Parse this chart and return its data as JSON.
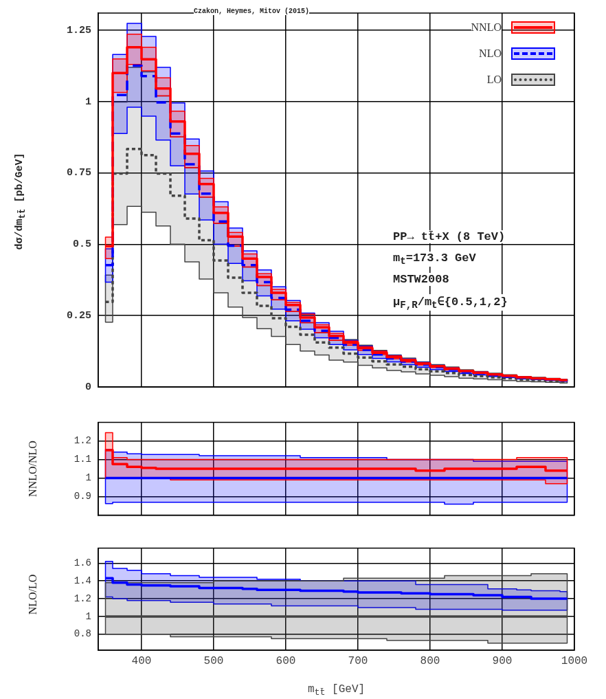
{
  "chart_data": [
    {
      "type": "step",
      "title": "Czakon, Heymes, Mitov (2015)",
      "ylabel": "dσ/dm$_{tt̄}$  [pb/GeV]",
      "x": [
        350,
        370,
        390,
        410,
        430,
        450,
        470,
        490,
        510,
        530,
        550,
        570,
        590,
        610,
        630,
        650,
        670,
        690,
        710,
        730,
        750,
        770,
        790,
        810,
        830,
        850,
        870,
        890,
        910,
        930,
        950,
        970,
        990
      ],
      "series": [
        {
          "name": "NNLO",
          "color": "#ff0000",
          "line_style": "solid",
          "values": [
            0.493,
            1.1,
            1.19,
            1.148,
            1.046,
            0.93,
            0.817,
            0.711,
            0.61,
            0.527,
            0.45,
            0.385,
            0.33,
            0.287,
            0.243,
            0.209,
            0.179,
            0.155,
            0.136,
            0.12,
            0.105,
            0.093,
            0.082,
            0.072,
            0.064,
            0.056,
            0.05,
            0.044,
            0.039,
            0.034,
            0.03,
            0.027,
            0.024
          ],
          "lower": [
            0.45,
            1.032,
            1.13,
            1.108,
            1.02,
            0.876,
            0.768,
            0.665,
            0.573,
            0.493,
            0.42,
            0.355,
            0.305,
            0.264,
            0.225,
            0.19,
            0.163,
            0.146,
            0.128,
            0.113,
            0.099,
            0.087,
            0.077,
            0.068,
            0.06,
            0.053,
            0.047,
            0.041,
            0.037,
            0.032,
            0.028,
            0.025,
            0.022
          ],
          "upper": [
            0.525,
            1.149,
            1.236,
            1.19,
            1.083,
            0.966,
            0.846,
            0.731,
            0.631,
            0.541,
            0.466,
            0.397,
            0.342,
            0.296,
            0.255,
            0.218,
            0.188,
            0.161,
            0.141,
            0.125,
            0.109,
            0.097,
            0.085,
            0.075,
            0.067,
            0.058,
            0.052,
            0.046,
            0.041,
            0.035,
            0.031,
            0.028,
            0.025
          ]
        },
        {
          "name": "NLO",
          "color": "#0000ff",
          "line_style": "dashed",
          "values": [
            0.427,
            1.023,
            1.126,
            1.089,
            0.997,
            0.888,
            0.78,
            0.677,
            0.58,
            0.495,
            0.427,
            0.367,
            0.312,
            0.271,
            0.232,
            0.197,
            0.172,
            0.148,
            0.13,
            0.114,
            0.1,
            0.089,
            0.078,
            0.069,
            0.061,
            0.053,
            0.048,
            0.042,
            0.037,
            0.032,
            0.029,
            0.026,
            0.023
          ],
          "lower": [
            0.367,
            0.888,
            0.98,
            0.949,
            0.865,
            0.775,
            0.676,
            0.585,
            0.5,
            0.433,
            0.372,
            0.319,
            0.273,
            0.232,
            0.202,
            0.172,
            0.149,
            0.13,
            0.114,
            0.1,
            0.088,
            0.078,
            0.069,
            0.061,
            0.054,
            0.047,
            0.042,
            0.037,
            0.033,
            0.028,
            0.026,
            0.023,
            0.02
          ],
          "upper": [
            0.484,
            1.165,
            1.274,
            1.228,
            1.12,
            0.995,
            0.869,
            0.757,
            0.649,
            0.557,
            0.477,
            0.41,
            0.351,
            0.303,
            0.259,
            0.225,
            0.195,
            0.163,
            0.143,
            0.125,
            0.11,
            0.098,
            0.086,
            0.076,
            0.067,
            0.058,
            0.053,
            0.046,
            0.041,
            0.035,
            0.032,
            0.029,
            0.025
          ]
        },
        {
          "name": "LO",
          "color": "#444444",
          "line_style": "dotted",
          "values": [
            0.298,
            0.748,
            0.834,
            0.812,
            0.748,
            0.67,
            0.59,
            0.514,
            0.443,
            0.383,
            0.33,
            0.284,
            0.241,
            0.211,
            0.183,
            0.156,
            0.138,
            0.117,
            0.103,
            0.09,
            0.079,
            0.071,
            0.062,
            0.055,
            0.049,
            0.042,
            0.038,
            0.034,
            0.03,
            0.026,
            0.024,
            0.021,
            0.019
          ],
          "lower": [
            0.227,
            0.569,
            0.633,
            0.612,
            0.564,
            0.5,
            0.438,
            0.378,
            0.33,
            0.28,
            0.243,
            0.204,
            0.177,
            0.149,
            0.126,
            0.112,
            0.094,
            0.087,
            0.076,
            0.067,
            0.058,
            0.053,
            0.046,
            0.041,
            0.036,
            0.031,
            0.028,
            0.025,
            0.022,
            0.019,
            0.018,
            0.016,
            0.014
          ],
          "upper": [
            0.392,
            0.998,
            1.12,
            1.104,
            1.02,
            0.876,
            0.768,
            0.665,
            0.573,
            0.493,
            0.42,
            0.355,
            0.305,
            0.264,
            0.225,
            0.19,
            0.163,
            0.166,
            0.146,
            0.128,
            0.112,
            0.101,
            0.088,
            0.078,
            0.07,
            0.06,
            0.054,
            0.048,
            0.043,
            0.037,
            0.034,
            0.03,
            0.027
          ]
        }
      ],
      "xlim": [
        340,
        1000
      ],
      "xticks": [
        400,
        500,
        600,
        700,
        800,
        900,
        1000
      ],
      "ylim": [
        0,
        1.31
      ],
      "yticks": [
        0,
        0.25,
        0.5,
        0.75,
        1,
        1.25
      ],
      "grid": true,
      "legend": "top right",
      "tick_labels": "y",
      "annotations": [
        "PP→ tt̄+X (8 TeV)",
        "m$_{t}$=173.3 GeV",
        "MSTW2008",
        "μ$_{F,R}$/m$_{t}$∈{0.5,1,2}"
      ]
    },
    {
      "type": "step",
      "ylabel": "NNLO/NLO",
      "x": [
        350,
        370,
        390,
        410,
        430,
        450,
        470,
        490,
        510,
        530,
        550,
        570,
        590,
        610,
        630,
        650,
        670,
        690,
        710,
        730,
        750,
        770,
        790,
        810,
        830,
        850,
        870,
        890,
        910,
        930,
        950,
        970,
        990
      ],
      "series": [
        {
          "color": "#ff0000",
          "line_style": "solid",
          "values": [
            1.15,
            1.075,
            1.06,
            1.055,
            1.05,
            1.05,
            1.05,
            1.05,
            1.05,
            1.05,
            1.05,
            1.05,
            1.05,
            1.05,
            1.05,
            1.05,
            1.05,
            1.05,
            1.05,
            1.05,
            1.05,
            1.05,
            1.04,
            1.04,
            1.05,
            1.05,
            1.05,
            1.05,
            1.05,
            1.06,
            1.06,
            1.04,
            1.04
          ],
          "lower": [
            1.0,
            1.0,
            1.0,
            1.0,
            1.0,
            0.99,
            0.99,
            0.99,
            0.99,
            0.99,
            0.99,
            0.99,
            0.99,
            0.99,
            0.99,
            0.99,
            0.99,
            0.99,
            0.99,
            0.99,
            0.99,
            0.99,
            0.99,
            0.99,
            0.99,
            0.99,
            0.99,
            0.99,
            0.99,
            0.99,
            0.99,
            0.97,
            0.97
          ],
          "upper": [
            1.244,
            1.11,
            1.1,
            1.1,
            1.1,
            1.1,
            1.1,
            1.1,
            1.1,
            1.1,
            1.1,
            1.1,
            1.1,
            1.1,
            1.1,
            1.1,
            1.1,
            1.1,
            1.1,
            1.1,
            1.1,
            1.1,
            1.1,
            1.1,
            1.1,
            1.1,
            1.1,
            1.1,
            1.1,
            1.11,
            1.11,
            1.11,
            1.11
          ]
        },
        {
          "color": "#0000ff",
          "line_style": "solid",
          "values": [
            1,
            1,
            1,
            1,
            1,
            1,
            1,
            1,
            1,
            1,
            1,
            1,
            1,
            1,
            1,
            1,
            1,
            1,
            1,
            1,
            1,
            1,
            1,
            1,
            1,
            1,
            1,
            1,
            1,
            1,
            1,
            1,
            1
          ],
          "lower": [
            0.862,
            0.87,
            0.87,
            0.87,
            0.87,
            0.87,
            0.87,
            0.87,
            0.87,
            0.87,
            0.87,
            0.87,
            0.87,
            0.87,
            0.87,
            0.87,
            0.87,
            0.87,
            0.87,
            0.87,
            0.87,
            0.87,
            0.87,
            0.87,
            0.86,
            0.86,
            0.87,
            0.87,
            0.87,
            0.87,
            0.87,
            0.87,
            0.87
          ],
          "upper": [
            1.154,
            1.14,
            1.13,
            1.127,
            1.127,
            1.127,
            1.127,
            1.12,
            1.12,
            1.12,
            1.12,
            1.12,
            1.12,
            1.12,
            1.11,
            1.11,
            1.11,
            1.11,
            1.11,
            1.11,
            1.1,
            1.1,
            1.1,
            1.1,
            1.1,
            1.1,
            1.09,
            1.09,
            1.09,
            1.09,
            1.09,
            1.09,
            1.09
          ]
        }
      ],
      "xlim": [
        340,
        1000
      ],
      "xticks": [
        400,
        500,
        600,
        700,
        800,
        900,
        1000
      ],
      "ylim": [
        0.8,
        1.3
      ],
      "yticks": [
        0.9,
        1,
        1.1,
        1.2
      ],
      "grid": true,
      "tick_labels": "y"
    },
    {
      "type": "step",
      "ylabel": "NLO/LO",
      "xlabel": "m$_{tt̄}$  [GeV]",
      "x": [
        350,
        370,
        390,
        410,
        430,
        450,
        470,
        490,
        510,
        530,
        550,
        570,
        590,
        610,
        630,
        650,
        670,
        690,
        710,
        730,
        750,
        770,
        790,
        810,
        830,
        850,
        870,
        890,
        910,
        930,
        950,
        970,
        990
      ],
      "series": [
        {
          "color": "#444444",
          "line_style": "solid",
          "values": [
            1,
            1,
            1,
            1,
            1,
            1,
            1,
            1,
            1,
            1,
            1,
            1,
            1,
            1,
            1,
            1,
            1,
            1,
            1,
            1,
            1,
            1,
            1,
            1,
            1,
            1,
            1,
            1,
            1,
            1,
            1,
            1,
            1
          ],
          "lower": [
            0.8,
            0.8,
            0.8,
            0.8,
            0.8,
            0.77,
            0.77,
            0.77,
            0.77,
            0.77,
            0.77,
            0.77,
            0.75,
            0.75,
            0.75,
            0.75,
            0.75,
            0.75,
            0.75,
            0.75,
            0.73,
            0.73,
            0.73,
            0.73,
            0.73,
            0.73,
            0.73,
            0.7,
            0.7,
            0.7,
            0.7,
            0.7,
            0.7
          ],
          "upper": [
            1.38,
            1.38,
            1.38,
            1.38,
            1.38,
            1.38,
            1.38,
            1.38,
            1.4,
            1.4,
            1.4,
            1.4,
            1.4,
            1.4,
            1.4,
            1.4,
            1.4,
            1.43,
            1.43,
            1.43,
            1.43,
            1.43,
            1.43,
            1.43,
            1.46,
            1.46,
            1.46,
            1.46,
            1.46,
            1.46,
            1.48,
            1.48,
            1.48
          ]
        },
        {
          "color": "#0000ff",
          "line_style": "solid",
          "values": [
            1.43,
            1.38,
            1.36,
            1.35,
            1.35,
            1.34,
            1.34,
            1.32,
            1.32,
            1.32,
            1.31,
            1.3,
            1.3,
            1.3,
            1.29,
            1.29,
            1.29,
            1.28,
            1.27,
            1.27,
            1.27,
            1.26,
            1.26,
            1.25,
            1.25,
            1.25,
            1.24,
            1.24,
            1.22,
            1.22,
            1.2,
            1.2,
            1.2
          ],
          "lower": [
            1.22,
            1.2,
            1.18,
            1.18,
            1.18,
            1.16,
            1.16,
            1.16,
            1.14,
            1.14,
            1.14,
            1.14,
            1.12,
            1.12,
            1.12,
            1.12,
            1.12,
            1.12,
            1.1,
            1.1,
            1.1,
            1.1,
            1.08,
            1.08,
            1.08,
            1.08,
            1.08,
            1.08,
            1.07,
            1.07,
            1.07,
            1.07,
            1.07
          ],
          "upper": [
            1.62,
            1.54,
            1.52,
            1.48,
            1.48,
            1.46,
            1.46,
            1.44,
            1.44,
            1.44,
            1.44,
            1.42,
            1.42,
            1.42,
            1.4,
            1.4,
            1.4,
            1.4,
            1.4,
            1.4,
            1.4,
            1.4,
            1.36,
            1.36,
            1.36,
            1.36,
            1.36,
            1.31,
            1.31,
            1.3,
            1.29,
            1.29,
            1.28
          ]
        }
      ],
      "xlim": [
        340,
        1000
      ],
      "xticks": [
        400,
        500,
        600,
        700,
        800,
        900,
        1000
      ],
      "ylim": [
        0.62,
        1.77
      ],
      "yticks": [
        0.8,
        1,
        1.2,
        1.4,
        1.6
      ],
      "grid": true
    }
  ]
}
